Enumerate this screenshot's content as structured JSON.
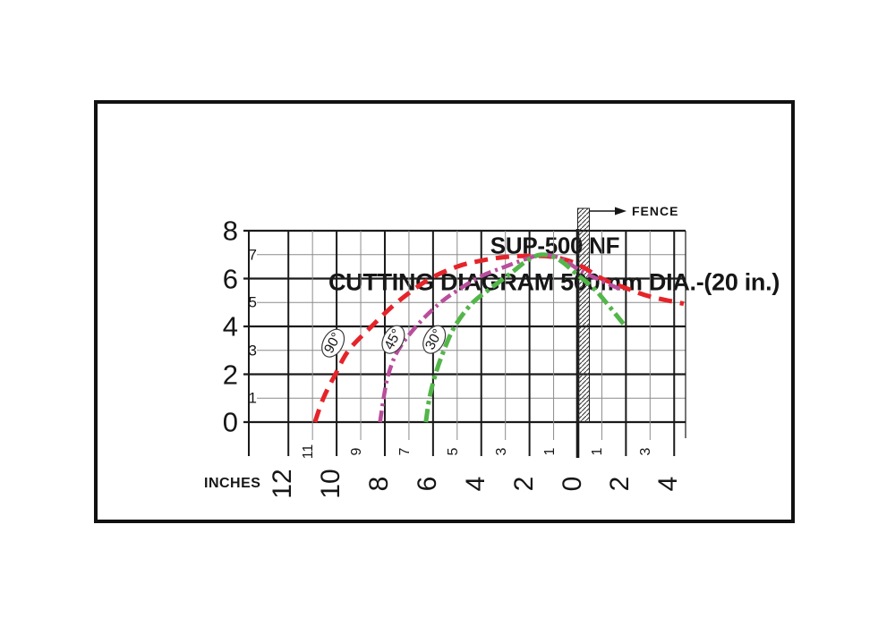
{
  "titles": {
    "line1": "SUP-500 NF",
    "line2": "CUTTING DIAGRAM 500mm DIA.-(20 in.)"
  },
  "chart_data": {
    "type": "line",
    "title": "SUP-500 NF",
    "subtitle": "CUTTING DIAGRAM 500mm DIA.-(20 in.)",
    "x_axis": {
      "label": "INCHES",
      "range": [
        13.6,
        -4.45
      ],
      "major_ticks": [
        {
          "v": 12,
          "label": "12"
        },
        {
          "v": 10,
          "label": "10"
        },
        {
          "v": 8,
          "label": "8"
        },
        {
          "v": 6,
          "label": "6"
        },
        {
          "v": 4,
          "label": "4"
        },
        {
          "v": 2,
          "label": "2"
        },
        {
          "v": 0,
          "label": "0"
        },
        {
          "v": -2,
          "label": "2"
        },
        {
          "v": -4,
          "label": "4"
        }
      ],
      "minor_ticks": [
        {
          "v": 11,
          "label": "11"
        },
        {
          "v": 9,
          "label": "9"
        },
        {
          "v": 7,
          "label": "7"
        },
        {
          "v": 5,
          "label": "5"
        },
        {
          "v": 3,
          "label": "3"
        },
        {
          "v": 1,
          "label": "1"
        },
        {
          "v": -1,
          "label": "1"
        },
        {
          "v": -3,
          "label": "3"
        }
      ]
    },
    "y_axis": {
      "range": [
        0,
        8
      ],
      "major_ticks": [
        {
          "v": 8,
          "label": "8"
        },
        {
          "v": 6,
          "label": "6"
        },
        {
          "v": 4,
          "label": "4"
        },
        {
          "v": 2,
          "label": "2"
        },
        {
          "v": 0,
          "label": "0"
        }
      ],
      "minor_ticks": [
        {
          "v": 7,
          "label": "7"
        },
        {
          "v": 5,
          "label": "5"
        },
        {
          "v": 3,
          "label": "3"
        },
        {
          "v": 1,
          "label": "1"
        }
      ]
    },
    "grid": {
      "major_color": "#1a1a1a",
      "minor_color": "#8c8c8c"
    },
    "fence": {
      "label": "FENCE",
      "x": 0
    },
    "series": [
      {
        "name": "cut-capacity-90deg",
        "angle_label": "90°",
        "color": "#e5242a",
        "dash": "15 9",
        "width": 5,
        "label_at": {
          "x": 10.15,
          "y": 3.3
        },
        "points": [
          [
            10.9,
            0
          ],
          [
            10.55,
            1
          ],
          [
            10.05,
            2
          ],
          [
            9.5,
            3
          ],
          [
            8.55,
            4
          ],
          [
            7.5,
            5
          ],
          [
            6.2,
            5.95
          ],
          [
            5,
            6.5
          ],
          [
            4,
            6.75
          ],
          [
            3,
            6.9
          ],
          [
            2,
            6.95
          ],
          [
            1,
            6.9
          ],
          [
            0,
            6.6
          ],
          [
            -1,
            6.0
          ],
          [
            -2,
            5.6
          ],
          [
            -3,
            5.25
          ],
          [
            -4.4,
            4.95
          ]
        ]
      },
      {
        "name": "cut-capacity-45deg",
        "angle_label": "45°",
        "color": "#b94e9c",
        "dash": "13 5 3 5",
        "width": 4.5,
        "label_at": {
          "x": 7.65,
          "y": 3.45
        },
        "points": [
          [
            8.2,
            0
          ],
          [
            8.05,
            1
          ],
          [
            7.85,
            2
          ],
          [
            7.45,
            3
          ],
          [
            6.7,
            4
          ],
          [
            5.8,
            4.9
          ],
          [
            5,
            5.5
          ],
          [
            4,
            6.1
          ],
          [
            3,
            6.5
          ],
          [
            2.2,
            6.8
          ],
          [
            1.4,
            7.0
          ],
          [
            0.6,
            6.8
          ],
          [
            0,
            6.4
          ],
          [
            -1,
            5.9
          ],
          [
            -1.9,
            5.5
          ]
        ]
      },
      {
        "name": "cut-capacity-30deg",
        "angle_label": "30°",
        "color": "#53b649",
        "dash": "15 5 4 5",
        "width": 5,
        "label_at": {
          "x": 5.95,
          "y": 3.45
        },
        "points": [
          [
            6.3,
            0
          ],
          [
            6.15,
            1
          ],
          [
            5.9,
            2
          ],
          [
            5.55,
            3
          ],
          [
            5.1,
            4
          ],
          [
            4.4,
            4.95
          ],
          [
            3.6,
            5.6
          ],
          [
            2.8,
            6.2
          ],
          [
            2.1,
            6.75
          ],
          [
            1.5,
            7.0
          ],
          [
            0.8,
            6.8
          ],
          [
            0,
            6.15
          ],
          [
            -0.7,
            5.55
          ],
          [
            -1.3,
            4.85
          ],
          [
            -1.9,
            4.1
          ]
        ]
      }
    ]
  }
}
